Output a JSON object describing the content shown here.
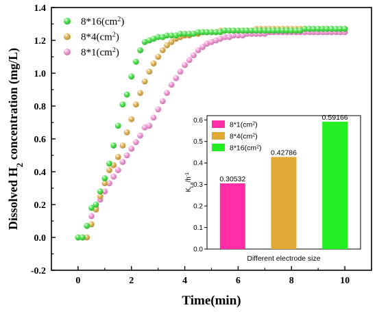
{
  "chart_data": [
    {
      "type": "scatter",
      "xlabel": "Time(min)",
      "ylabel_parts": {
        "prefix": "Dissolved H",
        "subscript": "2",
        "suffix": " concentration (mg/L)"
      },
      "xlim": [
        -1,
        11
      ],
      "ylim": [
        -0.2,
        1.4
      ],
      "xticks": [
        0,
        2,
        4,
        6,
        8,
        10
      ],
      "yticks": [
        -0.2,
        0.0,
        0.2,
        0.4,
        0.6,
        0.8,
        1.0,
        1.2,
        1.4
      ],
      "xtick_labels": [
        "0",
        "2",
        "4",
        "6",
        "8",
        "10"
      ],
      "ytick_labels": [
        "-0.2",
        "0.0",
        "0.2",
        "0.4",
        "0.6",
        "0.8",
        "1.0",
        "1.2",
        "1.4"
      ],
      "legend_position": "top-left",
      "series": [
        {
          "name": "8*16(cm",
          "name_sup": "2",
          "name_end": ")",
          "color": "#2ee02e",
          "x": [
            0.0,
            0.17,
            0.33,
            0.5,
            0.67,
            0.83,
            1.0,
            1.17,
            1.33,
            1.5,
            1.67,
            1.83,
            2.0,
            2.17,
            2.33,
            2.5,
            2.67,
            2.83,
            3.0,
            3.17,
            3.33,
            3.5,
            3.67,
            3.83,
            4.0,
            4.17,
            4.33,
            4.5,
            4.67,
            4.83,
            5.0,
            5.17,
            5.33,
            5.5,
            5.67,
            5.83,
            6.0,
            6.17,
            6.33,
            6.5,
            6.67,
            6.83,
            7.0,
            7.17,
            7.33,
            7.5,
            7.67,
            7.83,
            8.0,
            8.17,
            8.33,
            8.5,
            8.67,
            8.83,
            9.0,
            9.17,
            9.33,
            9.5,
            9.67,
            9.83,
            10.0
          ],
          "y": [
            0.0,
            0.0,
            0.07,
            0.18,
            0.2,
            0.28,
            0.36,
            0.45,
            0.56,
            0.68,
            0.81,
            0.87,
            0.98,
            1.07,
            1.14,
            1.19,
            1.2,
            1.21,
            1.22,
            1.22,
            1.23,
            1.23,
            1.23,
            1.24,
            1.24,
            1.24,
            1.24,
            1.25,
            1.25,
            1.25,
            1.25,
            1.25,
            1.25,
            1.26,
            1.26,
            1.26,
            1.26,
            1.26,
            1.26,
            1.26,
            1.26,
            1.26,
            1.26,
            1.26,
            1.26,
            1.26,
            1.26,
            1.26,
            1.26,
            1.26,
            1.26,
            1.27,
            1.27,
            1.27,
            1.27,
            1.27,
            1.27,
            1.27,
            1.27,
            1.27,
            1.27
          ]
        },
        {
          "name": "8*4(cm",
          "name_sup": "2",
          "name_end": ")",
          "color": "#e0a93a",
          "x": [
            0.0,
            0.17,
            0.33,
            0.5,
            0.67,
            0.83,
            1.0,
            1.17,
            1.33,
            1.5,
            1.67,
            1.83,
            2.0,
            2.17,
            2.33,
            2.5,
            2.67,
            2.83,
            3.0,
            3.17,
            3.33,
            3.5,
            3.67,
            3.83,
            4.0,
            4.17,
            4.33,
            4.5,
            4.67,
            4.83,
            5.0,
            5.17,
            5.33,
            5.5,
            5.67,
            5.83,
            6.0,
            6.17,
            6.33,
            6.5,
            6.67,
            6.83,
            7.0,
            7.17,
            7.33,
            7.5,
            7.67,
            7.83,
            8.0,
            8.17,
            8.33,
            8.5,
            8.67,
            8.83,
            9.0,
            9.17,
            9.33,
            9.5,
            9.67,
            9.83,
            10.0
          ],
          "y": [
            0.0,
            0.0,
            0.0,
            0.08,
            0.17,
            0.25,
            0.33,
            0.41,
            0.44,
            0.49,
            0.56,
            0.64,
            0.72,
            0.81,
            0.88,
            0.95,
            1.01,
            1.06,
            1.1,
            1.14,
            1.17,
            1.19,
            1.21,
            1.22,
            1.23,
            1.23,
            1.24,
            1.24,
            1.25,
            1.25,
            1.25,
            1.25,
            1.26,
            1.26,
            1.26,
            1.26,
            1.26,
            1.26,
            1.26,
            1.26,
            1.27,
            1.27,
            1.27,
            1.27,
            1.27,
            1.27,
            1.27,
            1.27,
            1.27,
            1.27,
            1.27,
            1.27,
            1.27,
            1.27,
            1.27,
            1.27,
            1.27,
            1.27,
            1.27,
            1.27,
            1.27
          ]
        },
        {
          "name": "8*1(cm",
          "name_sup": "2",
          "name_end": ")",
          "color": "#f58ad2",
          "x": [
            0.0,
            0.17,
            0.33,
            0.5,
            0.67,
            0.83,
            1.0,
            1.17,
            1.33,
            1.5,
            1.67,
            1.83,
            2.0,
            2.17,
            2.33,
            2.5,
            2.67,
            2.83,
            3.0,
            3.17,
            3.33,
            3.5,
            3.67,
            3.83,
            4.0,
            4.17,
            4.33,
            4.5,
            4.67,
            4.83,
            5.0,
            5.17,
            5.33,
            5.5,
            5.67,
            5.83,
            6.0,
            6.17,
            6.33,
            6.5,
            6.67,
            6.83,
            7.0,
            7.17,
            7.33,
            7.5,
            7.67,
            7.83,
            8.0,
            8.17,
            8.33,
            8.5,
            8.67,
            8.83,
            9.0,
            9.17,
            9.33,
            9.5,
            9.67,
            9.83,
            10.0
          ],
          "y": [
            0.0,
            0.0,
            0.07,
            0.13,
            0.18,
            0.23,
            0.28,
            0.33,
            0.37,
            0.41,
            0.46,
            0.5,
            0.54,
            0.58,
            0.62,
            0.67,
            0.68,
            0.73,
            0.78,
            0.83,
            0.88,
            0.93,
            0.97,
            1.01,
            1.05,
            1.08,
            1.11,
            1.14,
            1.16,
            1.18,
            1.19,
            1.2,
            1.21,
            1.22,
            1.22,
            1.23,
            1.23,
            1.23,
            1.24,
            1.24,
            1.24,
            1.24,
            1.24,
            1.25,
            1.25,
            1.25,
            1.25,
            1.25,
            1.25,
            1.25,
            1.25,
            1.25,
            1.25,
            1.25,
            1.25,
            1.25,
            1.25,
            1.25,
            1.25,
            1.25,
            1.25
          ]
        }
      ]
    },
    {
      "type": "bar",
      "categories": [
        "8*1(cm2)",
        "8*4(cm2)",
        "8*16(cm2)"
      ],
      "values": [
        0.30532,
        0.42786,
        0.59166
      ],
      "value_labels": [
        "0.30532",
        "0.42786",
        "0.59166"
      ],
      "colors": [
        "#ff2da6",
        "#e0a934",
        "#22ee22"
      ],
      "xlabel": "Different electrode size",
      "ylabel_parts": {
        "main": "K",
        "sub": "La",
        "mid": "/h",
        "sup": "-1"
      },
      "ylim": [
        0,
        0.62
      ],
      "yticks": [
        0.0,
        0.1,
        0.2,
        0.3,
        0.4,
        0.5,
        0.6
      ],
      "ytick_labels": [
        "0.0",
        "0.1",
        "0.2",
        "0.3",
        "0.4",
        "0.5",
        "0.6"
      ],
      "legend_position": "top-left",
      "legend": [
        {
          "name": "8*1(cm",
          "sup": "2",
          "end": ")"
        },
        {
          "name": "8*4(cm",
          "sup": "2",
          "end": ")"
        },
        {
          "name": "8*16(cm",
          "sup": "2",
          "end": ")"
        }
      ]
    }
  ]
}
